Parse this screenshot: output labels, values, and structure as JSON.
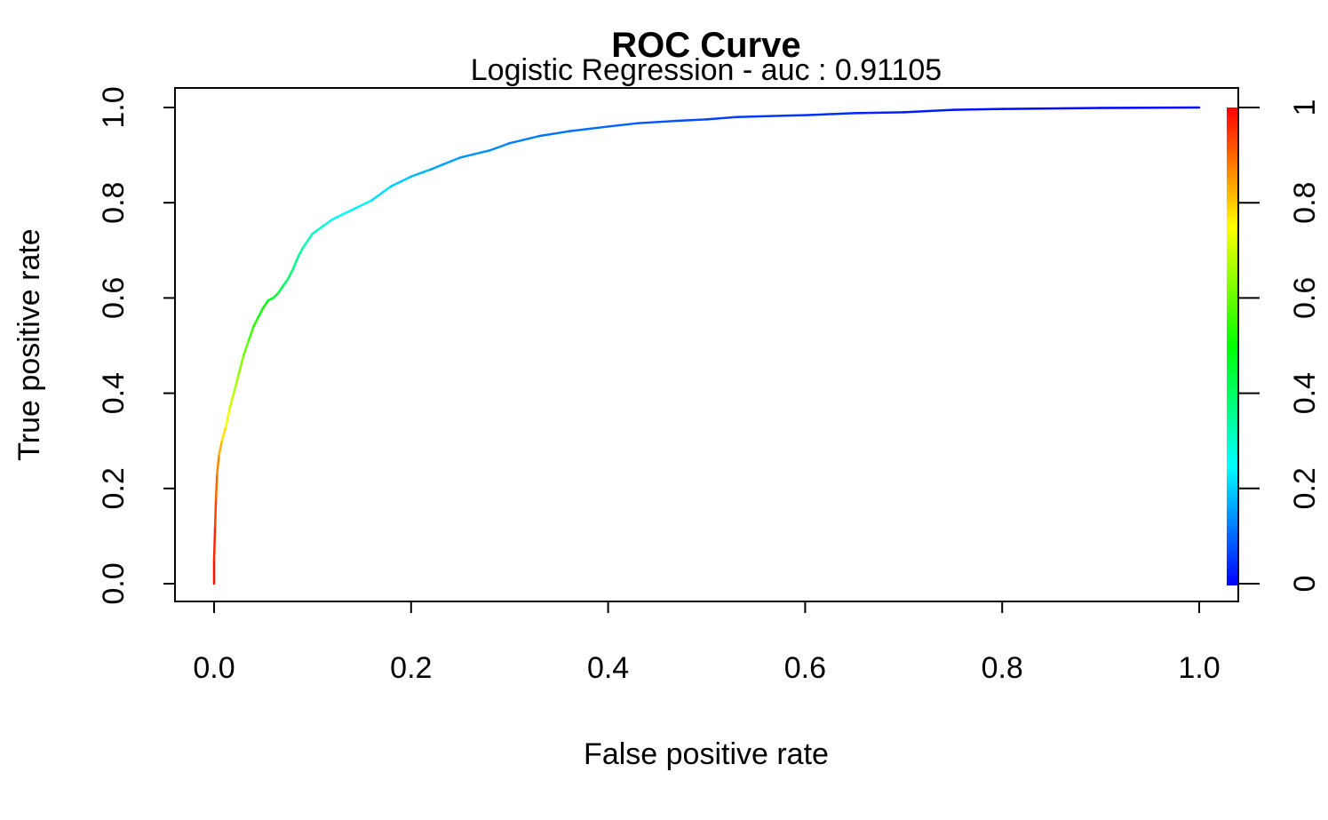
{
  "chart_data": {
    "type": "line",
    "title": "ROC Curve",
    "subtitle": "Logistic Regression - auc :  0.91105",
    "xlabel": "False positive rate",
    "ylabel": "True positive rate",
    "xlim": [
      0,
      1
    ],
    "ylim": [
      0,
      1
    ],
    "x_ticks": [
      "0.0",
      "0.2",
      "0.4",
      "0.6",
      "0.8",
      "1.0"
    ],
    "y_ticks": [
      "0.0",
      "0.2",
      "0.4",
      "0.6",
      "0.8",
      "1.0"
    ],
    "colorbar": {
      "range": [
        0,
        1
      ],
      "ticks": [
        "0",
        "0.2",
        "0.4",
        "0.6",
        "0.8",
        "1"
      ],
      "colormap": [
        "#0000ff",
        "#00ffff",
        "#00ff00",
        "#ffff00",
        "#ff0000"
      ]
    },
    "series": [
      {
        "x": [
          0.0,
          0.0,
          0.001,
          0.002,
          0.003,
          0.005,
          0.008,
          0.012,
          0.016,
          0.02,
          0.025,
          0.03,
          0.035,
          0.04,
          0.045,
          0.05,
          0.055,
          0.06,
          0.065,
          0.07,
          0.075,
          0.08,
          0.085,
          0.09,
          0.1,
          0.11,
          0.12,
          0.14,
          0.16,
          0.18,
          0.2,
          0.22,
          0.25,
          0.28,
          0.3,
          0.33,
          0.36,
          0.4,
          0.43,
          0.47,
          0.5,
          0.53,
          0.6,
          0.65,
          0.7,
          0.75,
          0.8,
          0.9,
          1.0
        ],
        "y": [
          0.0,
          0.05,
          0.12,
          0.18,
          0.23,
          0.27,
          0.3,
          0.33,
          0.37,
          0.4,
          0.44,
          0.48,
          0.51,
          0.54,
          0.56,
          0.58,
          0.595,
          0.6,
          0.61,
          0.625,
          0.64,
          0.66,
          0.685,
          0.705,
          0.735,
          0.75,
          0.765,
          0.785,
          0.805,
          0.835,
          0.855,
          0.87,
          0.895,
          0.91,
          0.925,
          0.94,
          0.95,
          0.96,
          0.967,
          0.972,
          0.975,
          0.98,
          0.984,
          0.988,
          0.99,
          0.995,
          0.997,
          0.999,
          1.0
        ],
        "cutoff": [
          1.0,
          0.98,
          0.95,
          0.92,
          0.88,
          0.85,
          0.8,
          0.76,
          0.72,
          0.68,
          0.65,
          0.62,
          0.58,
          0.55,
          0.52,
          0.5,
          0.48,
          0.46,
          0.44,
          0.42,
          0.4,
          0.38,
          0.36,
          0.34,
          0.31,
          0.29,
          0.27,
          0.25,
          0.23,
          0.21,
          0.19,
          0.17,
          0.15,
          0.14,
          0.13,
          0.12,
          0.11,
          0.1,
          0.09,
          0.08,
          0.07,
          0.06,
          0.05,
          0.04,
          0.03,
          0.02,
          0.01,
          0.005,
          0.0
        ]
      }
    ]
  }
}
